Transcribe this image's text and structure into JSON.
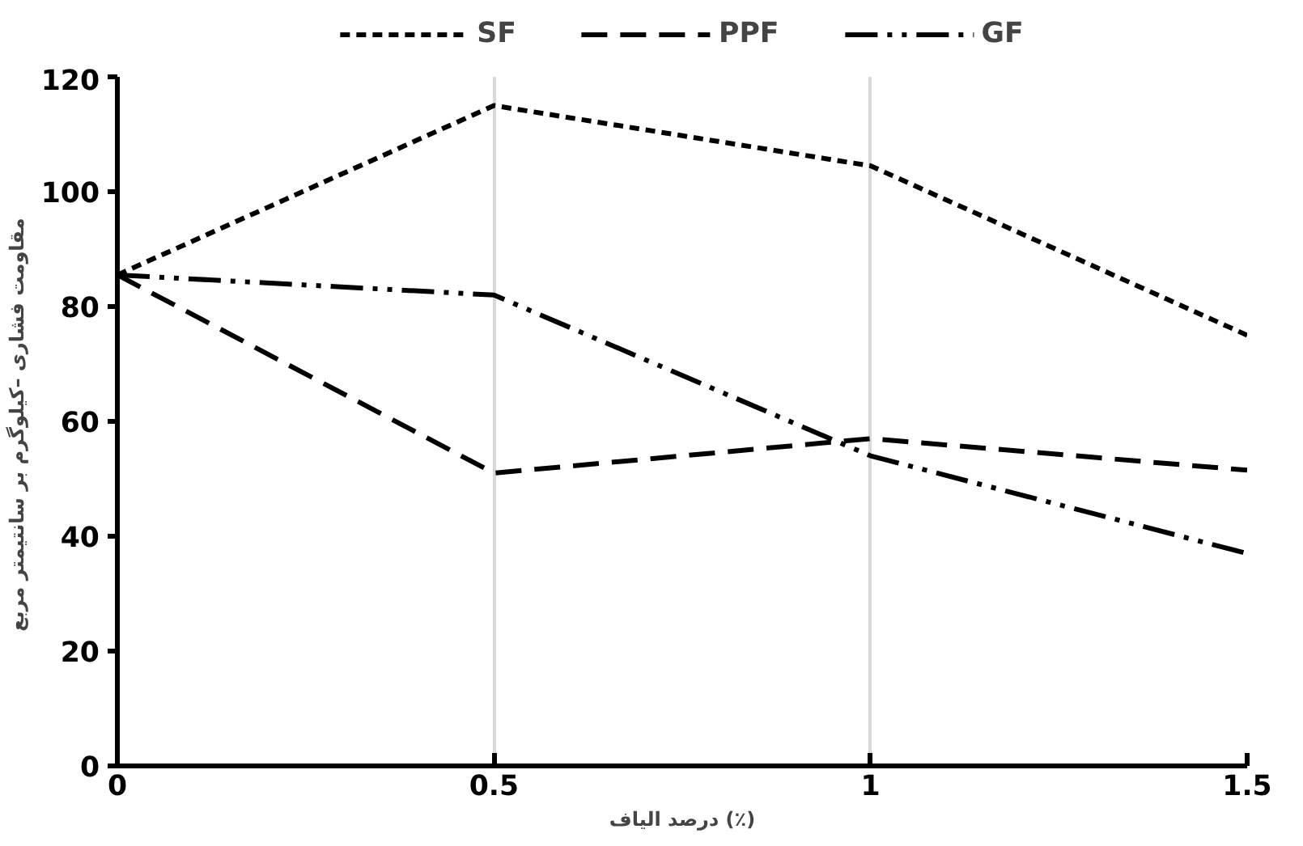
{
  "chart_data": {
    "type": "line",
    "xlabel": "درصد الیاف (٪)",
    "ylabel": "مقاومت فشاری  –کیلوگرم بر سانتیمتر مربع",
    "x": [
      0,
      0.5,
      1,
      1.5
    ],
    "xlim": [
      0,
      1.5
    ],
    "xticks": [
      0,
      0.5,
      1,
      1.5
    ],
    "ylim": [
      0,
      120
    ],
    "yticks": [
      0,
      20,
      40,
      60,
      80,
      100,
      120
    ],
    "grid": "x",
    "legend": "top",
    "marker": "none",
    "series": [
      {
        "name": "SF",
        "color": "#000000",
        "line_style": "dotted",
        "values": [
          85.5,
          115,
          104.5,
          75
        ]
      },
      {
        "name": "PPF",
        "color": "#000000",
        "line_style": "dashed",
        "values": [
          85.5,
          51,
          57,
          51.5
        ]
      },
      {
        "name": "GF",
        "color": "#000000",
        "line_style": "dashdotdot",
        "values": [
          85.5,
          82,
          54,
          37
        ]
      }
    ]
  }
}
